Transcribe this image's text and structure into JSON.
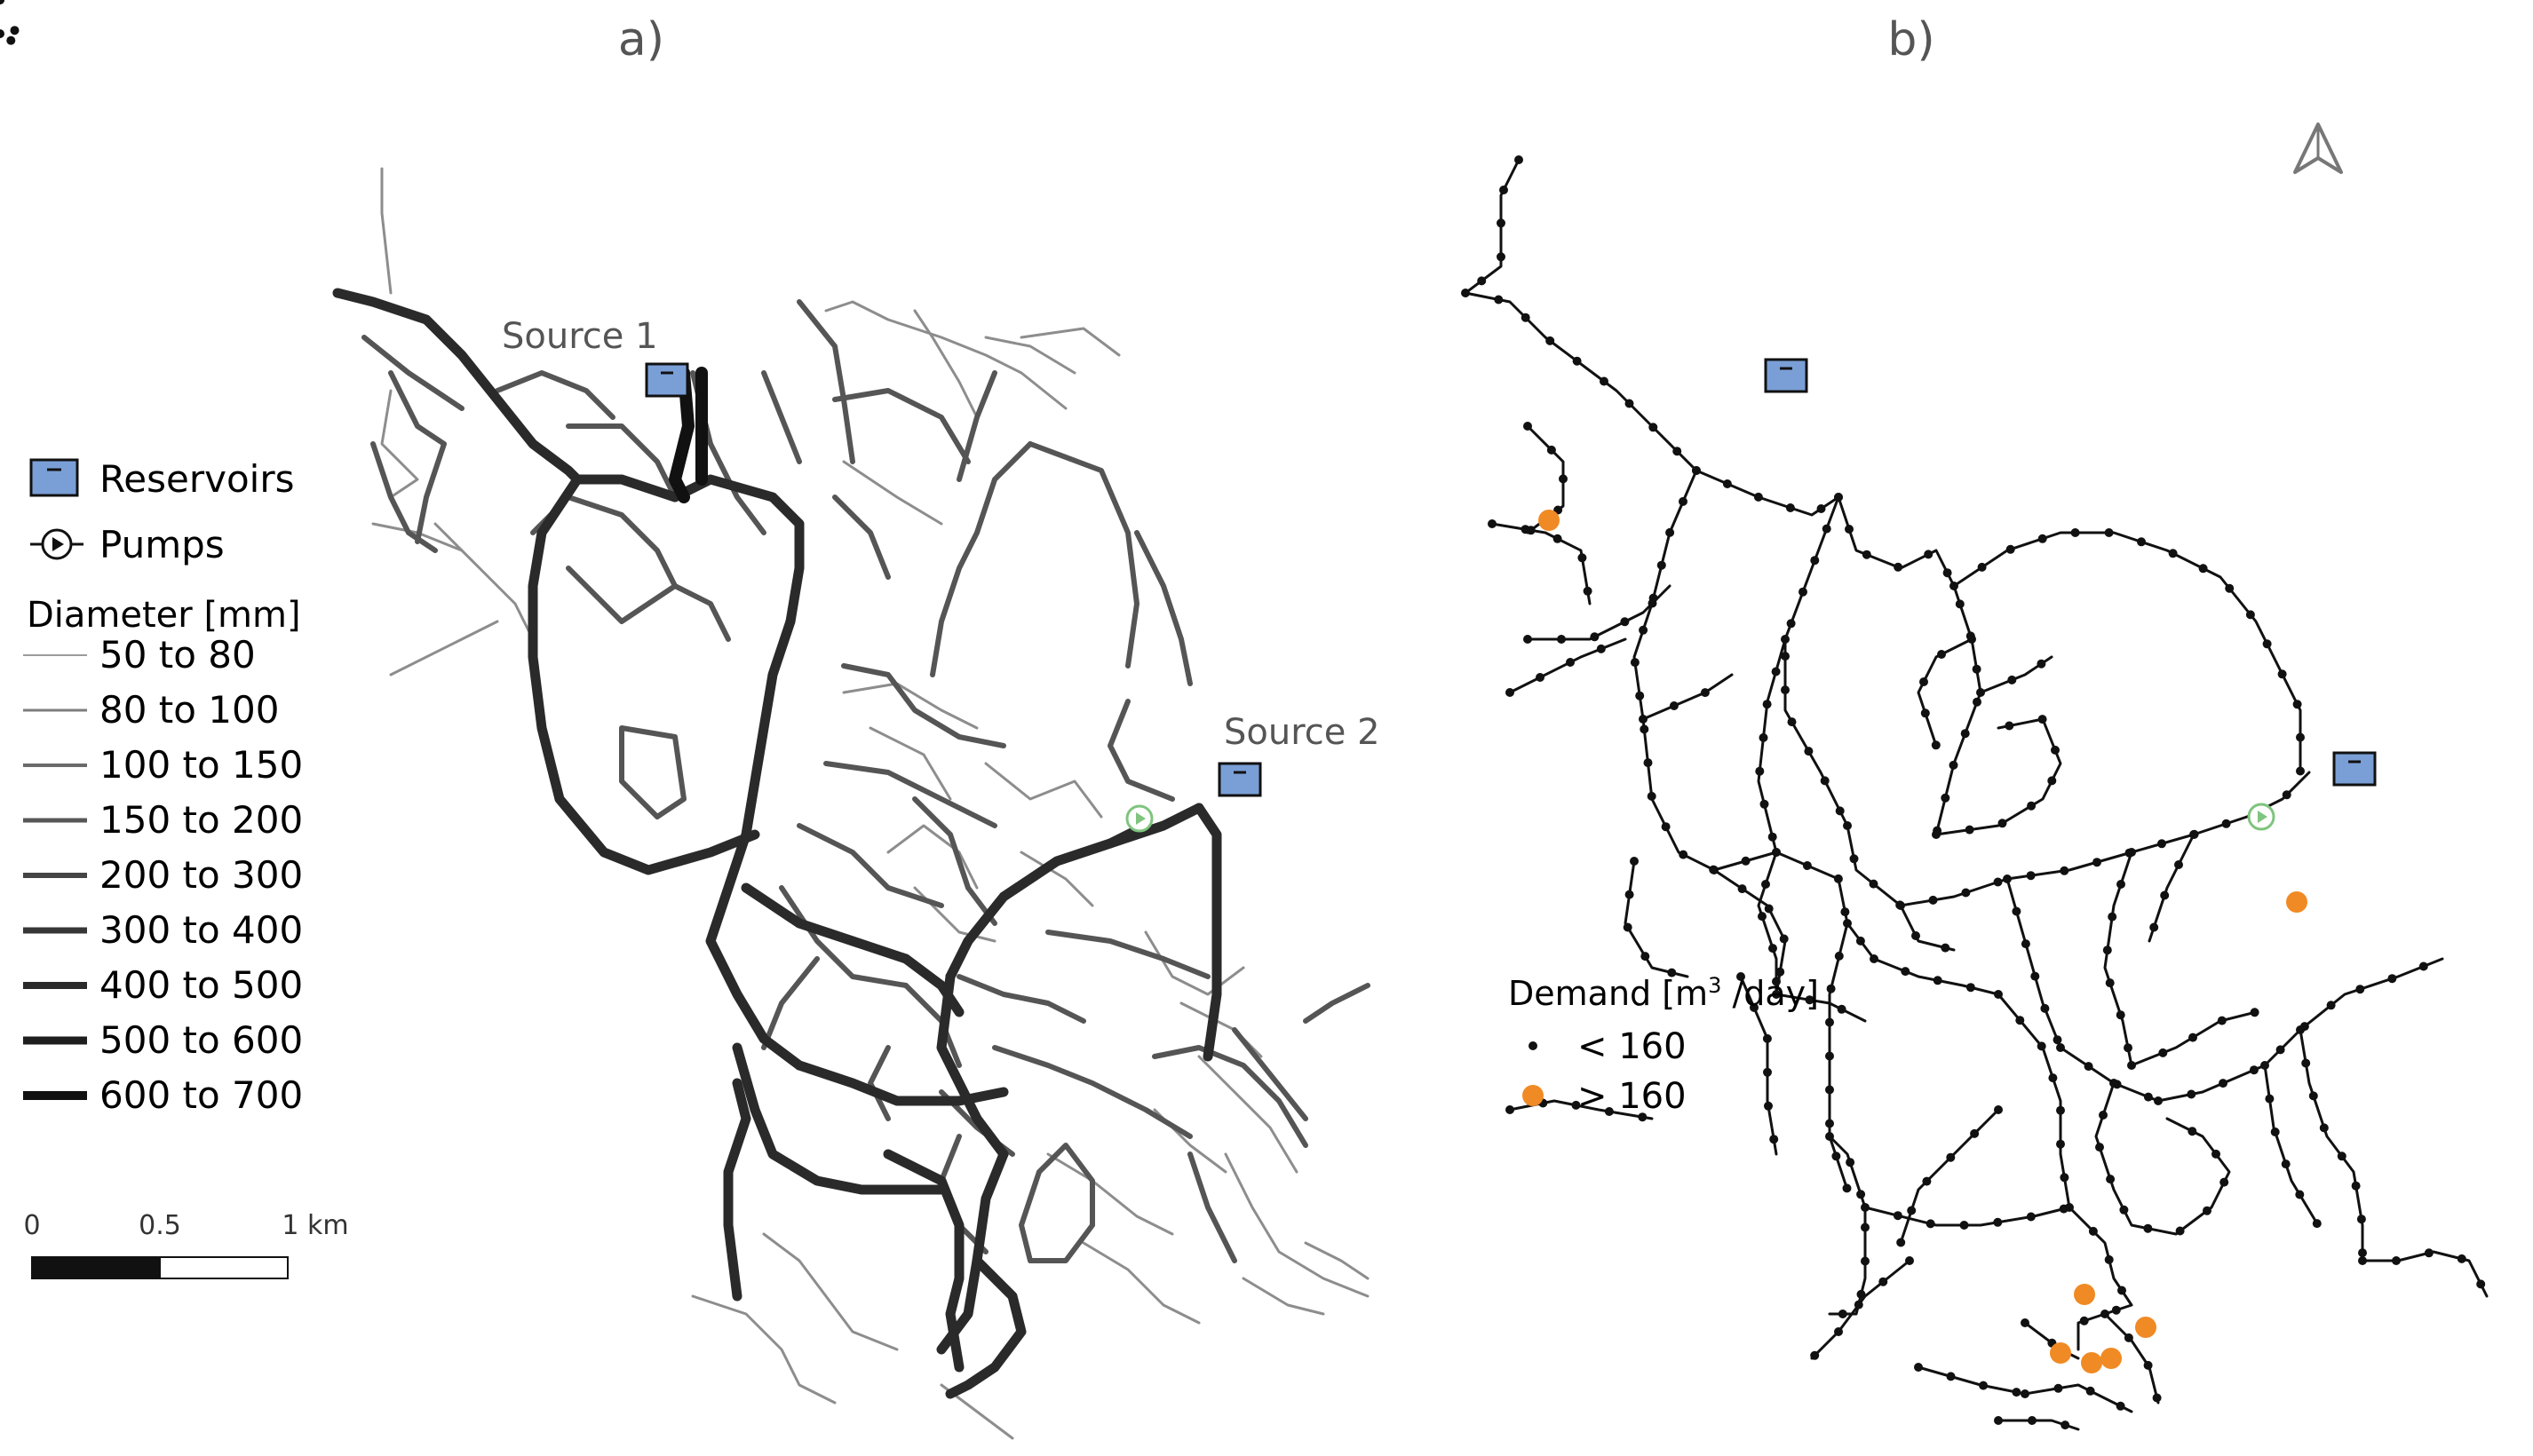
{
  "panels": {
    "a": {
      "label": "a)"
    },
    "b": {
      "label": "b)"
    }
  },
  "sources": {
    "source1": "Source 1",
    "source2": "Source 2"
  },
  "legend_a": {
    "reservoirs": "Reservoirs",
    "pumps": "Pumps",
    "diameter_title": "Diameter [mm]",
    "diameter_classes": [
      "50 to 80",
      "80 to 100",
      "100 to 150",
      "150 to 200",
      "200 to 300",
      "300 to 400",
      "400 to 500",
      "500 to 600",
      "600 to 700"
    ]
  },
  "legend_b": {
    "demand_title_prefix": "Demand [m",
    "demand_title_sup": "3",
    "demand_title_suffix": " /day]",
    "low": "< 160",
    "high": "> 160"
  },
  "scale_bar": {
    "ticks": [
      "0",
      "0.5",
      "1 km"
    ]
  },
  "colors": {
    "reservoir_fill": "#7a9fd6",
    "pump": "#7fc47f",
    "high_demand": "#f08a24",
    "pipe_dark": "#1c1c1c"
  },
  "icons": {
    "north_arrow": "north-arrow-icon",
    "reservoir": "reservoir-icon",
    "pump": "pump-icon"
  }
}
